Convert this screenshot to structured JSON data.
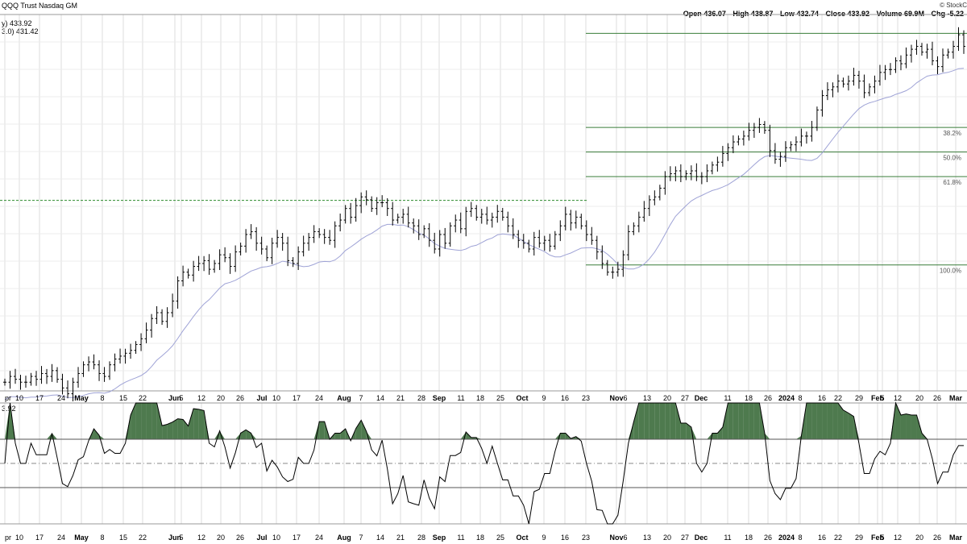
{
  "header": {
    "title": "QQQ Trust Nasdaq GM",
    "main_legend_1": "y) 433.92",
    "main_legend_2": "3.0) 431.42",
    "lower_legend": "3.92",
    "credit": "© StockC",
    "ohlc": [
      {
        "label": "Open",
        "value": "436.07"
      },
      {
        "label": "High",
        "value": "438.87"
      },
      {
        "label": "Low",
        "value": "432.74"
      },
      {
        "label": "Close",
        "value": "433.92"
      },
      {
        "label": "Volume",
        "value": "69.9M"
      },
      {
        "label": "Chg",
        "value": "-5.22"
      }
    ]
  },
  "chart_data": [
    {
      "type": "ohlc_bar",
      "title": "QQQ Trust Nasdaq GM",
      "x_tick_labels": [
        "pr",
        "10",
        "17",
        "24",
        "May",
        "8",
        "15",
        "22",
        "Jun",
        "5",
        "12",
        "20",
        "26",
        "Jul",
        "10",
        "17",
        "24",
        "Aug",
        "7",
        "14",
        "21",
        "28",
        "Sep",
        "11",
        "18",
        "25",
        "Oct",
        "9",
        "16",
        "23",
        "Nov",
        "6",
        "13",
        "20",
        "27",
        "Dec",
        "11",
        "18",
        "26",
        "2024",
        "8",
        "16",
        "22",
        "29",
        "Feb",
        "5",
        "12",
        "20",
        "26",
        "Mar"
      ],
      "ylim": [
        315,
        445
      ],
      "grid": true,
      "price_series": {
        "dates_start": "2023-04-03",
        "closes": [
          318,
          320,
          319,
          318,
          318,
          320,
          319,
          321,
          320,
          322,
          319,
          316,
          314,
          318,
          321,
          324,
          325,
          324,
          321,
          320,
          324,
          326,
          327,
          328,
          329,
          331,
          333,
          336,
          340,
          342,
          339,
          342,
          346,
          353,
          356,
          355,
          358,
          359,
          360,
          357,
          359,
          362,
          361,
          358,
          363,
          365,
          369,
          370,
          366,
          364,
          361,
          366,
          368,
          366,
          360,
          359,
          363,
          366,
          368,
          370,
          369,
          368,
          367,
          372,
          374,
          378,
          375,
          379,
          382,
          381,
          378,
          380,
          380,
          378,
          374,
          375,
          376,
          373,
          372,
          369,
          371,
          367,
          364,
          369,
          366,
          372,
          374,
          371,
          377,
          378,
          375,
          376,
          374,
          375,
          377,
          375,
          372,
          369,
          367,
          366,
          364,
          368,
          366,
          367,
          365,
          369,
          372,
          376,
          373,
          375,
          372,
          369,
          367,
          363,
          359,
          356,
          356,
          357,
          362,
          370,
          372,
          375,
          378,
          381,
          382,
          385,
          389,
          390,
          391,
          389,
          390,
          391,
          389,
          389,
          391,
          393,
          394,
          397,
          399,
          401,
          402,
          403,
          405,
          406,
          407,
          405,
          398,
          395,
          396,
          399,
          400,
          401,
          403,
          403,
          406,
          412,
          417,
          419,
          420,
          422,
          421,
          422,
          424,
          422,
          418,
          420,
          422,
          425,
          426,
          426,
          429,
          428,
          431,
          433,
          434,
          432,
          433,
          429,
          427,
          431,
          432,
          434,
          438,
          434
        ]
      },
      "moving_average": {
        "label": "3.0) 431.42"
      },
      "reference_line": {
        "style": "dashed",
        "value": 380.8
      },
      "fibonacci_levels": [
        {
          "label": "",
          "value": 438.5
        },
        {
          "label": "38.2%",
          "value": 406
        },
        {
          "label": "50.0%",
          "value": 397.5
        },
        {
          "label": "61.8%",
          "value": 389
        },
        {
          "label": "100.0%",
          "value": 358.5
        }
      ]
    },
    {
      "type": "line",
      "title": "",
      "ylim": [
        0,
        100
      ],
      "overbought": 70,
      "oversold": 30,
      "midline": 50,
      "grid": true,
      "x_tick_labels": [
        "pr",
        "10",
        "17",
        "24",
        "May",
        "8",
        "15",
        "22",
        "Jun",
        "5",
        "12",
        "20",
        "26",
        "Jul",
        "10",
        "17",
        "24",
        "Aug",
        "7",
        "14",
        "21",
        "28",
        "Sep",
        "11",
        "18",
        "25",
        "Oct",
        "9",
        "16",
        "23",
        "Nov",
        "6",
        "13",
        "20",
        "27",
        "Dec",
        "11",
        "18",
        "26",
        "2024",
        "8",
        "16",
        "22",
        "29",
        "Feb",
        "5",
        "12",
        "20",
        "26",
        "Mar"
      ]
    }
  ]
}
